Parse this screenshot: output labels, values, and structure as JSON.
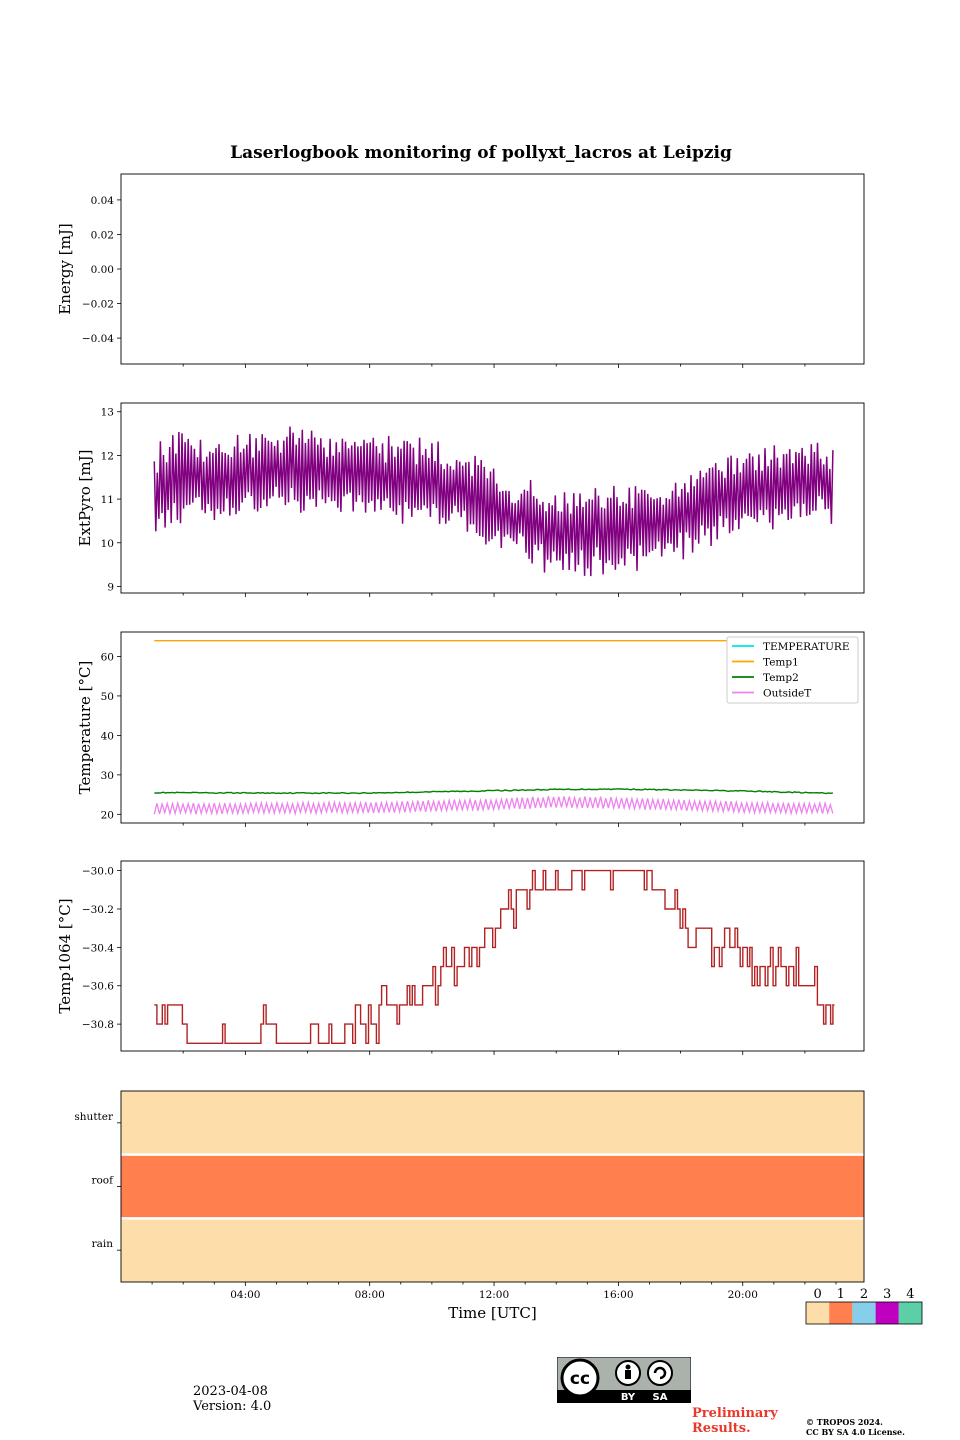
{
  "title": "Laserlogbook monitoring of pollyxt_lacros at Leipzig",
  "footer": {
    "date": "2023-04-08",
    "version": "Version: 4.0",
    "preliminary_line1": "Preliminary",
    "preliminary_line2": "Results.",
    "copyright_line1": "© TROPOS 2024.",
    "copyright_line2": "CC BY SA 4.0 License.",
    "license_badge": {
      "icon": "cc-by-sa-icon",
      "label_by": "BY",
      "label_sa": "SA"
    }
  },
  "chart_data": [
    {
      "type": "line",
      "name": "energy",
      "ylabel": "Energy [mJ]",
      "ylim": [
        -0.055,
        0.055
      ],
      "yticks": [
        -0.04,
        -0.02,
        0.0,
        0.02,
        0.04
      ],
      "ytick_labels": [
        "−0.04",
        "−0.02",
        "0.00",
        "0.02",
        "0.04"
      ],
      "xlim": [
        0.0,
        23.9
      ],
      "series": []
    },
    {
      "type": "line",
      "name": "extpyro",
      "ylabel": "ExtPyro [mJ]",
      "ylim": [
        8.85,
        13.2
      ],
      "yticks": [
        9,
        10,
        11,
        12,
        13
      ],
      "ytick_labels": [
        "9",
        "10",
        "11",
        "12",
        "13"
      ],
      "xlim": [
        0.0,
        23.9
      ],
      "series": [
        {
          "color": "#800080",
          "x_hours": [
            1.07,
            1.5,
            2.0,
            2.5,
            3.0,
            3.5,
            4.0,
            4.5,
            5.0,
            5.5,
            6.0,
            6.5,
            7.0,
            7.5,
            8.0,
            8.5,
            9.0,
            9.5,
            10.0,
            10.5,
            11.0,
            11.5,
            12.0,
            12.5,
            13.0,
            13.5,
            14.0,
            14.5,
            15.0,
            15.5,
            16.0,
            16.5,
            17.0,
            17.5,
            18.0,
            18.5,
            19.0,
            19.5,
            20.0,
            20.5,
            21.0,
            21.5,
            22.0,
            22.5,
            22.9
          ],
          "center": [
            11.3,
            11.4,
            11.5,
            11.5,
            11.5,
            11.55,
            11.6,
            11.6,
            11.6,
            11.6,
            11.65,
            11.6,
            11.6,
            11.6,
            11.55,
            11.5,
            11.45,
            11.4,
            11.35,
            11.25,
            11.15,
            11.0,
            10.85,
            10.65,
            10.5,
            10.35,
            10.25,
            10.2,
            10.2,
            10.25,
            10.3,
            10.35,
            10.4,
            10.5,
            10.6,
            10.75,
            10.9,
            11.0,
            11.1,
            11.2,
            11.25,
            11.3,
            11.35,
            11.4,
            11.3
          ],
          "amplitude": 0.75
        }
      ]
    },
    {
      "type": "line",
      "name": "temperature",
      "ylabel": "Temperature [°C]",
      "ylim": [
        17.8,
        66.2
      ],
      "yticks": [
        20,
        30,
        40,
        50,
        60
      ],
      "ytick_labels": [
        "20",
        "30",
        "40",
        "50",
        "60"
      ],
      "xlim": [
        0.0,
        23.9
      ],
      "legend_position": "upper right",
      "series": [
        {
          "name": "TEMPERATURE",
          "color": "#00e5e5",
          "x_hours": [],
          "y": []
        },
        {
          "name": "Temp1",
          "color": "#ffa500",
          "x_hours": [
            1.07,
            22.9
          ],
          "y": [
            64.0,
            64.0
          ]
        },
        {
          "name": "Temp2",
          "color": "#008000",
          "x_hours": [
            1.07,
            4.0,
            8.0,
            12.0,
            14.0,
            16.0,
            20.0,
            22.9
          ],
          "y": [
            25.5,
            25.4,
            25.4,
            26.0,
            26.3,
            26.4,
            25.9,
            25.3
          ]
        },
        {
          "name": "OutsideT",
          "color": "#ee82ee",
          "x_hours": [
            1.07,
            4.0,
            8.0,
            12.0,
            14.0,
            16.0,
            20.0,
            22.9
          ],
          "y_low": [
            20.2,
            20.3,
            20.5,
            21.2,
            21.8,
            21.6,
            20.6,
            20.3
          ],
          "y_high": [
            22.6,
            22.7,
            23.0,
            23.8,
            24.5,
            24.2,
            23.0,
            22.6
          ]
        }
      ]
    },
    {
      "type": "line",
      "name": "temp1064",
      "ylabel": "Temp1064 [°C]",
      "ylim": [
        -30.94,
        -29.95
      ],
      "yticks": [
        -30.8,
        -30.6,
        -30.4,
        -30.2,
        -30.0
      ],
      "ytick_labels": [
        "−30.8",
        "−30.6",
        "−30.4",
        "−30.2",
        "−30.0"
      ],
      "xlim": [
        0.0,
        23.9
      ],
      "series": [
        {
          "color": "#b22222",
          "steps": [
            [
              1.07,
              -30.8
            ],
            [
              1.5,
              -30.7
            ],
            [
              1.9,
              -30.8
            ],
            [
              2.2,
              -30.9
            ],
            [
              4.5,
              -30.8
            ],
            [
              5.0,
              -30.9
            ],
            [
              7.2,
              -30.8
            ],
            [
              8.3,
              -30.7
            ],
            [
              9.7,
              -30.6
            ],
            [
              10.2,
              -30.5
            ],
            [
              10.9,
              -30.5
            ],
            [
              11.2,
              -30.4
            ],
            [
              11.7,
              -30.3
            ],
            [
              12.3,
              -30.2
            ],
            [
              12.8,
              -30.1
            ],
            [
              13.5,
              -30.1
            ],
            [
              14.3,
              -30.1
            ],
            [
              14.5,
              -30.0
            ],
            [
              15.0,
              -30.0
            ],
            [
              17.0,
              -30.1
            ],
            [
              17.5,
              -30.2
            ],
            [
              17.9,
              -30.3
            ],
            [
              18.5,
              -30.3
            ],
            [
              19.0,
              -30.4
            ],
            [
              20.0,
              -30.4
            ],
            [
              20.3,
              -30.5
            ],
            [
              21.4,
              -30.5
            ],
            [
              21.8,
              -30.6
            ],
            [
              22.4,
              -30.7
            ],
            [
              22.6,
              -30.8
            ],
            [
              22.9,
              -30.7
            ]
          ]
        }
      ]
    },
    {
      "type": "heatmap",
      "name": "status",
      "ylabels": [
        "shutter",
        "roof",
        "rain"
      ],
      "values": [
        0,
        1,
        0
      ],
      "xlabel": "Time [UTC]",
      "xticks": [
        "04:00",
        "08:00",
        "12:00",
        "16:00",
        "20:00"
      ],
      "xtick_hours": [
        4,
        8,
        12,
        16,
        20
      ],
      "xlim": [
        0.0,
        23.9
      ],
      "colorbar": {
        "labels": [
          "0",
          "1",
          "2",
          "3",
          "4"
        ],
        "colors": [
          "#fddeab",
          "#ff7f4f",
          "#87ceeb",
          "#c000c0",
          "#5ccfa6"
        ]
      }
    }
  ]
}
